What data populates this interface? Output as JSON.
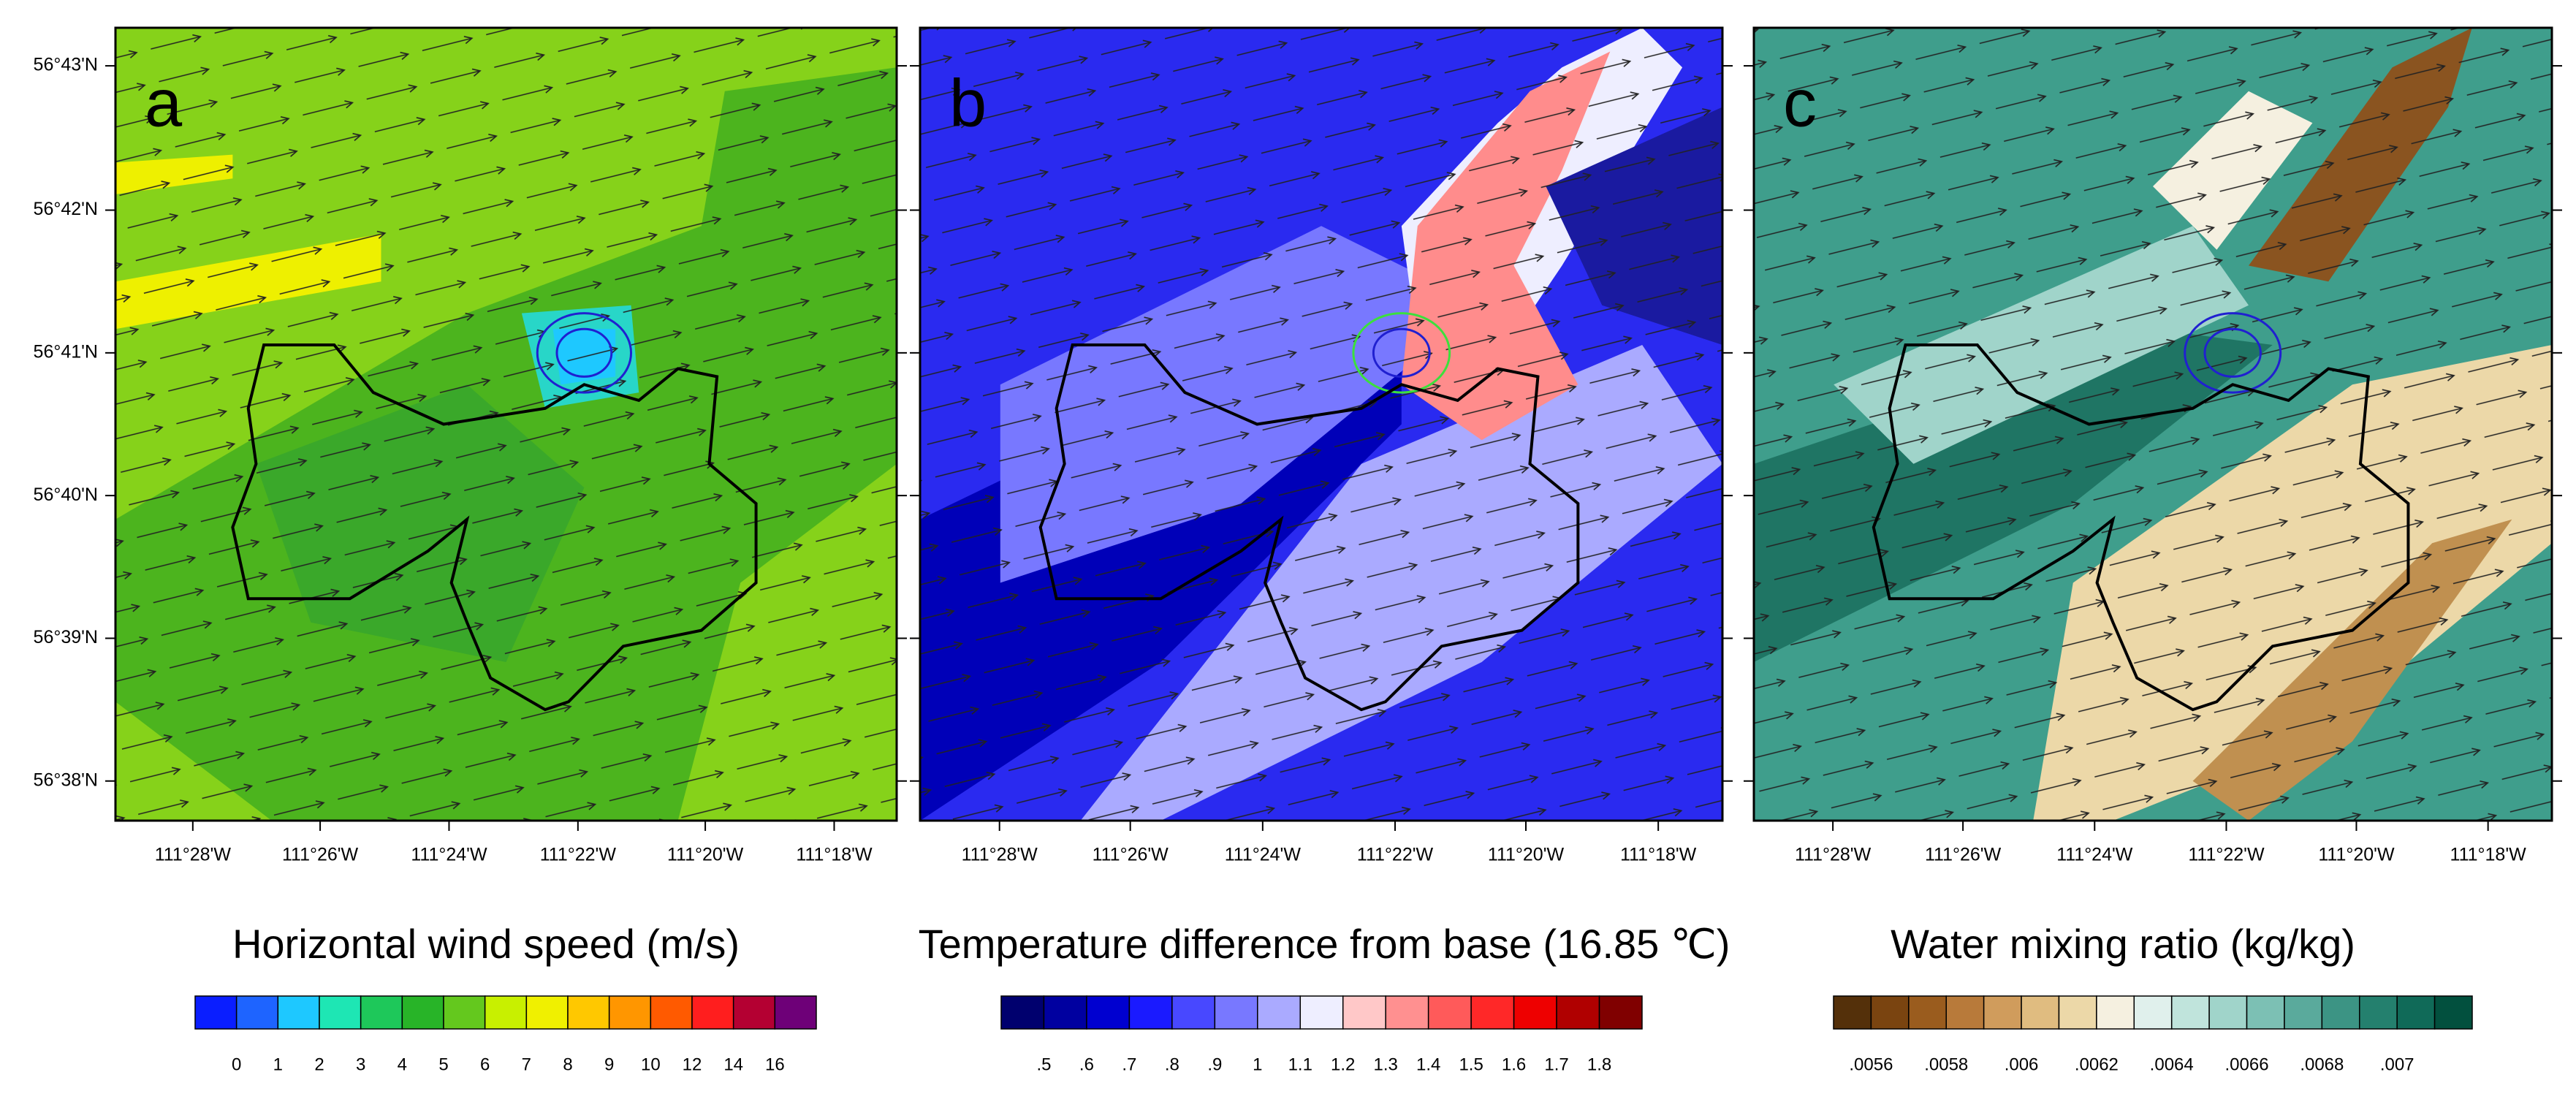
{
  "lat_ticks": [
    "56°43'N",
    "56°42'N",
    "56°41'N",
    "56°40'N",
    "56°39'N",
    "56°38'N"
  ],
  "panels": [
    {
      "label": "a",
      "lon_ticks": [
        "111°28'W",
        "111°26'W",
        "111°24'W",
        "111°22'W",
        "111°20'W",
        "111°18'W"
      ],
      "colorbar": {
        "title": "Horizontal wind speed (m/s)",
        "colors": [
          "#0a1eff",
          "#1e64ff",
          "#1ec8ff",
          "#1ee6b4",
          "#1ec85a",
          "#28b428",
          "#64c81e",
          "#c8f000",
          "#f0f000",
          "#ffc800",
          "#ff9600",
          "#ff5a00",
          "#ff1e1e",
          "#b40032",
          "#6e0078"
        ],
        "ticks": [
          "0",
          "1",
          "2",
          "3",
          "4",
          "5",
          "6",
          "7",
          "8",
          "9",
          "10",
          "12",
          "14",
          "16"
        ]
      }
    },
    {
      "label": "b",
      "lon_ticks": [
        "111°28'W",
        "111°26'W",
        "111°24'W",
        "111°22'W",
        "111°20'W",
        "111°18'W"
      ],
      "colorbar": {
        "title": "Temperature difference from base (16.85 ℃)",
        "colors": [
          "#00006e",
          "#0000a0",
          "#0000d0",
          "#1a1aff",
          "#4848ff",
          "#7878ff",
          "#aaaaff",
          "#eeeeff",
          "#ffc8c8",
          "#ff9090",
          "#ff5a5a",
          "#ff2828",
          "#ee0000",
          "#b00000",
          "#800000"
        ],
        "ticks": [
          ".5",
          ".6",
          ".7",
          ".8",
          ".9",
          "1",
          "1.1",
          "1.2",
          "1.3",
          "1.4",
          "1.5",
          "1.6",
          "1.7",
          "1.8"
        ]
      }
    },
    {
      "label": "c",
      "lon_ticks": [
        "111°28'W",
        "111°26'W",
        "111°24'W",
        "111°22'W",
        "111°20'W",
        "111°18'W"
      ],
      "colorbar": {
        "title": "Water mixing ratio (kg/kg)",
        "colors": [
          "#54300a",
          "#7a4410",
          "#9a5c1e",
          "#b87a3a",
          "#d09c5c",
          "#e0bc80",
          "#ecd8a8",
          "#f5f0e0",
          "#e0f0ec",
          "#c0e4dc",
          "#a0d4ca",
          "#7cc0b4",
          "#5aaa9c",
          "#3c9484",
          "#24806e",
          "#106a58",
          "#02503e"
        ],
        "ticks": [
          ".0056",
          ".0058",
          ".006",
          ".0062",
          ".0064",
          ".0066",
          ".0068",
          ".007"
        ]
      }
    }
  ]
}
